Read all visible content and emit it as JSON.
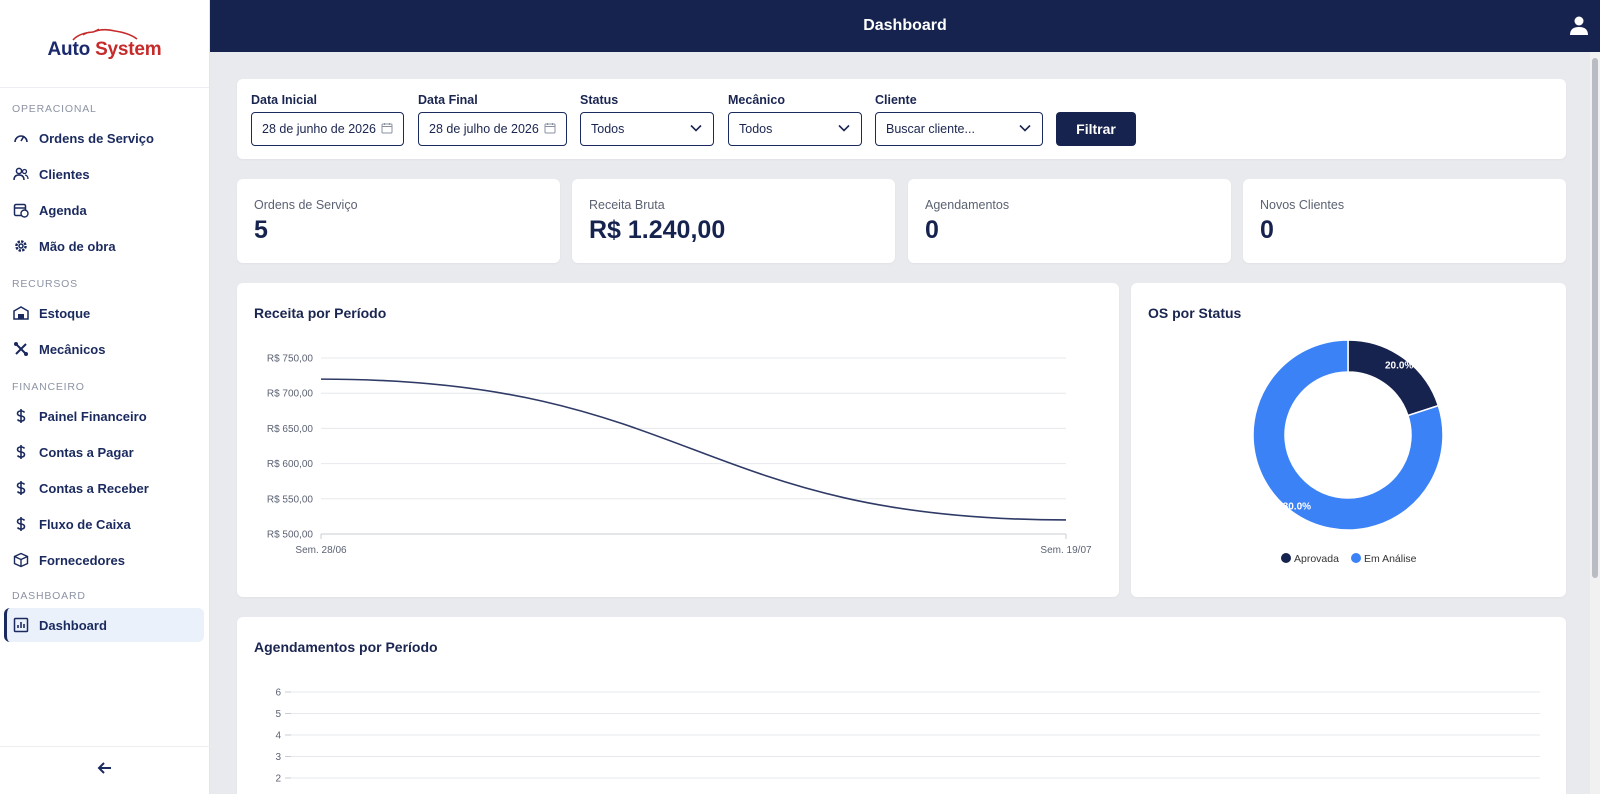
{
  "app": {
    "title": "Dashboard",
    "logo_part1": "Auto",
    "logo_part2": "System"
  },
  "sidebar": {
    "sections": [
      {
        "title": "OPERACIONAL"
      },
      {
        "title": "RECURSOS"
      },
      {
        "title": "FINANCEIRO"
      },
      {
        "title": "DASHBOARD"
      }
    ],
    "items": [
      {
        "label": "Ordens de Serviço",
        "icon": "gauge-icon"
      },
      {
        "label": "Clientes",
        "icon": "users-icon"
      },
      {
        "label": "Agenda",
        "icon": "calendar-clock-icon"
      },
      {
        "label": "Mão de obra",
        "icon": "gear-icon"
      },
      {
        "label": "Estoque",
        "icon": "warehouse-icon"
      },
      {
        "label": "Mecânicos",
        "icon": "tools-icon"
      },
      {
        "label": "Painel Financeiro",
        "icon": "dollar-icon"
      },
      {
        "label": "Contas a Pagar",
        "icon": "dollar-icon"
      },
      {
        "label": "Contas a Receber",
        "icon": "dollar-icon"
      },
      {
        "label": "Fluxo de Caixa",
        "icon": "dollar-icon"
      },
      {
        "label": "Fornecedores",
        "icon": "box-icon"
      },
      {
        "label": "Dashboard",
        "icon": "bar-chart-icon",
        "active": true
      }
    ],
    "collapse_icon": "arrow-left-icon"
  },
  "filters": {
    "start_label": "Data Inicial",
    "start_value": "28 de junho de 2026",
    "end_label": "Data Final",
    "end_value": "28 de julho de 2026",
    "status_label": "Status",
    "status_value": "Todos",
    "mechanic_label": "Mecânico",
    "mechanic_value": "Todos",
    "client_label": "Cliente",
    "client_placeholder": "Buscar cliente...",
    "submit_label": "Filtrar"
  },
  "kpis": [
    {
      "label": "Ordens de Serviço",
      "value": "5"
    },
    {
      "label": "Receita Bruta",
      "value": "R$ 1.240,00"
    },
    {
      "label": "Agendamentos",
      "value": "0"
    },
    {
      "label": "Novos Clientes",
      "value": "0"
    }
  ],
  "charts": {
    "revenue_title": "Receita por Período",
    "status_title": "OS por Status",
    "appointments_title": "Agendamentos por Período"
  },
  "colors": {
    "navy": "#17234f",
    "blue": "#3b82f6",
    "line": "#2f3a66"
  },
  "chart_data": [
    {
      "type": "line",
      "title": "Receita por Período",
      "x": [
        "Sem. 28/06",
        "Sem. 19/07"
      ],
      "series": [
        {
          "values": [
            720,
            520
          ]
        }
      ],
      "ylim": [
        500,
        750
      ],
      "yticks": [
        "R$ 750,00",
        "R$ 700,00",
        "R$ 650,00",
        "R$ 600,00",
        "R$ 550,00",
        "R$ 500,00"
      ],
      "ytick_values": [
        750,
        700,
        650,
        600,
        550,
        500
      ],
      "grid": true
    },
    {
      "type": "pie",
      "title": "OS por Status",
      "categories": [
        "Aprovada",
        "Em Análise"
      ],
      "values": [
        20.0,
        80.0
      ],
      "labels": [
        "20.0%",
        "80.0%"
      ],
      "colors": [
        "#17234f",
        "#3b82f6"
      ],
      "legend": "bottom"
    },
    {
      "type": "bar",
      "title": "Agendamentos por Período",
      "yticks": [
        "6",
        "5",
        "4",
        "3",
        "2"
      ],
      "ytick_values": [
        6,
        5,
        4,
        3,
        2
      ],
      "grid": true
    }
  ]
}
